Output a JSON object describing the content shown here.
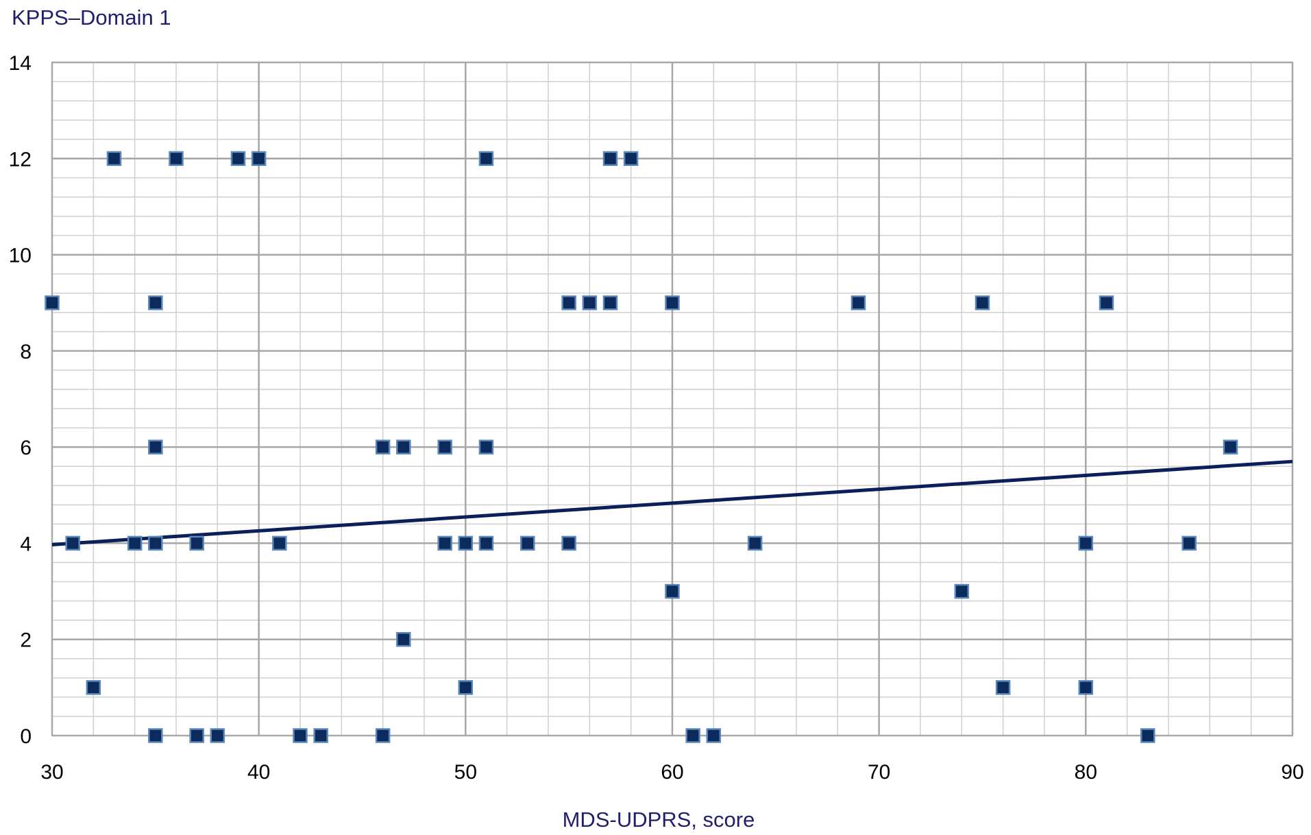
{
  "chart_data": {
    "type": "scatter",
    "ylabel": "KPPS–Domain 1",
    "xlabel": "MDS-UDPRS, score",
    "xlim": [
      30,
      90
    ],
    "ylim": [
      0,
      14
    ],
    "x_major_ticks": [
      30,
      40,
      50,
      60,
      70,
      80,
      90
    ],
    "y_major_ticks": [
      0,
      2,
      4,
      6,
      8,
      10,
      12,
      14
    ],
    "x_tick_labels": [
      "30",
      "40",
      "50",
      "60",
      "70",
      "80",
      "90"
    ],
    "y_tick_labels": [
      "0",
      "2",
      "4",
      "6",
      "8",
      "10",
      "12",
      "14"
    ],
    "x_minor_step": 2,
    "y_minor_step": 0.4,
    "grid": true,
    "marker_color": "#0c2a5c",
    "trendline_color": "#0b1f5a",
    "trendline": {
      "x": [
        30,
        90
      ],
      "y": [
        3.97,
        5.7
      ]
    },
    "points": [
      {
        "x": 30,
        "y": 9
      },
      {
        "x": 31,
        "y": 4
      },
      {
        "x": 32,
        "y": 1
      },
      {
        "x": 33,
        "y": 12
      },
      {
        "x": 34,
        "y": 4
      },
      {
        "x": 35,
        "y": 9
      },
      {
        "x": 35,
        "y": 6
      },
      {
        "x": 35,
        "y": 4
      },
      {
        "x": 35,
        "y": 0
      },
      {
        "x": 36,
        "y": 12
      },
      {
        "x": 37,
        "y": 4
      },
      {
        "x": 37,
        "y": 0
      },
      {
        "x": 38,
        "y": 0
      },
      {
        "x": 39,
        "y": 12
      },
      {
        "x": 40,
        "y": 12
      },
      {
        "x": 41,
        "y": 4
      },
      {
        "x": 42,
        "y": 0
      },
      {
        "x": 43,
        "y": 0
      },
      {
        "x": 46,
        "y": 6
      },
      {
        "x": 46,
        "y": 0
      },
      {
        "x": 47,
        "y": 6
      },
      {
        "x": 47,
        "y": 2
      },
      {
        "x": 49,
        "y": 6
      },
      {
        "x": 49,
        "y": 4
      },
      {
        "x": 50,
        "y": 4
      },
      {
        "x": 50,
        "y": 1
      },
      {
        "x": 51,
        "y": 12
      },
      {
        "x": 51,
        "y": 6
      },
      {
        "x": 51,
        "y": 4
      },
      {
        "x": 53,
        "y": 4
      },
      {
        "x": 55,
        "y": 9
      },
      {
        "x": 55,
        "y": 4
      },
      {
        "x": 56,
        "y": 9
      },
      {
        "x": 57,
        "y": 12
      },
      {
        "x": 57,
        "y": 9
      },
      {
        "x": 58,
        "y": 12
      },
      {
        "x": 60,
        "y": 9
      },
      {
        "x": 60,
        "y": 3
      },
      {
        "x": 61,
        "y": 0
      },
      {
        "x": 62,
        "y": 0
      },
      {
        "x": 64,
        "y": 4
      },
      {
        "x": 69,
        "y": 9
      },
      {
        "x": 74,
        "y": 3
      },
      {
        "x": 75,
        "y": 9
      },
      {
        "x": 76,
        "y": 1
      },
      {
        "x": 80,
        "y": 4
      },
      {
        "x": 80,
        "y": 1
      },
      {
        "x": 81,
        "y": 9
      },
      {
        "x": 83,
        "y": 0
      },
      {
        "x": 85,
        "y": 4
      },
      {
        "x": 87,
        "y": 6
      }
    ]
  }
}
